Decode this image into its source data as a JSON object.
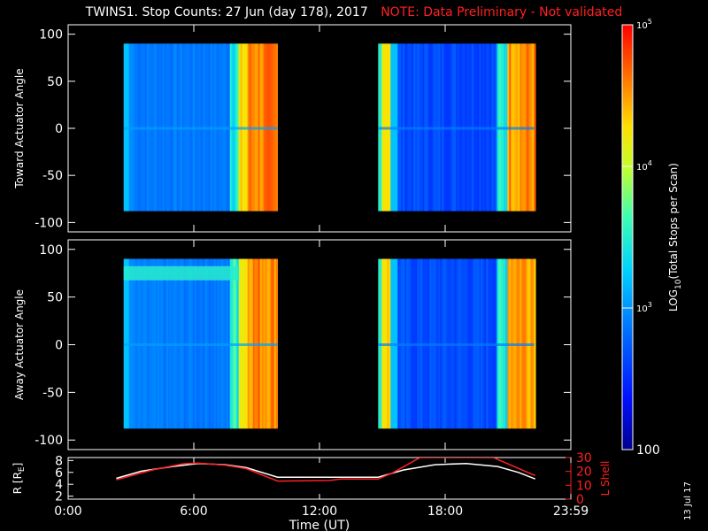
{
  "title": {
    "main": "TWINS1. Stop Counts: 27 Jun (day 178), 2017",
    "note": "NOTE: Data Preliminary - Not validated"
  },
  "side_date": "13 Jul 17",
  "colors": {
    "background": "#000000",
    "note": "#ff2020",
    "r_line": "#ffffff",
    "lshell_line": "#ff2020"
  },
  "chart_data": [
    {
      "type": "heatmap",
      "panel": "toward",
      "ylabel": "Toward Actuator Angle",
      "ylim": [
        -110,
        110
      ],
      "yticks": [
        100,
        50,
        0,
        -50,
        -100
      ],
      "xlim": [
        0,
        24
      ],
      "coverage": [
        [
          2.65,
          10.0
        ],
        [
          14.8,
          22.25
        ]
      ],
      "angle_range": [
        -88,
        90
      ]
    },
    {
      "type": "heatmap",
      "panel": "away",
      "ylabel": "Away Actuator Angle",
      "ylim": [
        -110,
        110
      ],
      "yticks": [
        100,
        50,
        0,
        -50,
        -100
      ],
      "xlim": [
        0,
        24
      ],
      "coverage": [
        [
          2.65,
          10.0
        ],
        [
          14.8,
          22.25
        ]
      ],
      "angle_range": [
        -88,
        90
      ]
    },
    {
      "type": "line",
      "panel": "orbit",
      "ylabel_left": "R [R",
      "ylabel_left_sub": "E",
      "ylabel_left_end": "]",
      "ylabel_right": "L Shell",
      "ylim_left": [
        1.5,
        8.5
      ],
      "yticks_left": [
        2,
        4,
        6,
        8
      ],
      "ylim_right": [
        0,
        30
      ],
      "yticks_right": [
        0,
        10,
        20,
        30
      ],
      "xlim": [
        0,
        24
      ],
      "xticks": [
        "0:00",
        "6:00",
        "12:00",
        "18:00",
        "23:59"
      ],
      "xlabel": "Time (UT)",
      "series": [
        {
          "axis": "left",
          "x": [
            2.3,
            3.5,
            5,
            6.2,
            7.5,
            8.5,
            10,
            14.8,
            16,
            17.5,
            19,
            20.5,
            21.5,
            22.3
          ],
          "values": [
            5.0,
            6.2,
            7.0,
            7.5,
            7.3,
            6.8,
            5.2,
            5.2,
            6.4,
            7.3,
            7.5,
            7.0,
            6.0,
            4.9
          ]
        },
        {
          "axis": "right",
          "x": [
            2.3,
            4,
            5.5,
            6.2,
            7.5,
            8.5,
            10,
            12.5,
            13,
            14.8,
            15.5,
            16.8,
            17.0,
            20.3,
            20.6,
            22.3
          ],
          "values": [
            14,
            21,
            25.5,
            26,
            24.5,
            22,
            13,
            13.5,
            14.5,
            14.5,
            19,
            30,
            30,
            30,
            28,
            17
          ]
        }
      ]
    },
    {
      "type": "heatmap",
      "panel": "colorbar",
      "label_main": "LOG",
      "label_sub": "10",
      "label_end": "(Total Stops per Scan)",
      "scale": "log",
      "range": [
        100,
        100000
      ],
      "ticks": [
        {
          "value": 100000,
          "base": "10",
          "exp": "5"
        },
        {
          "value": 10000,
          "base": "10",
          "exp": "4"
        },
        {
          "value": 1000,
          "base": "10",
          "exp": "3"
        },
        {
          "value": 100,
          "label": "100"
        }
      ]
    }
  ]
}
